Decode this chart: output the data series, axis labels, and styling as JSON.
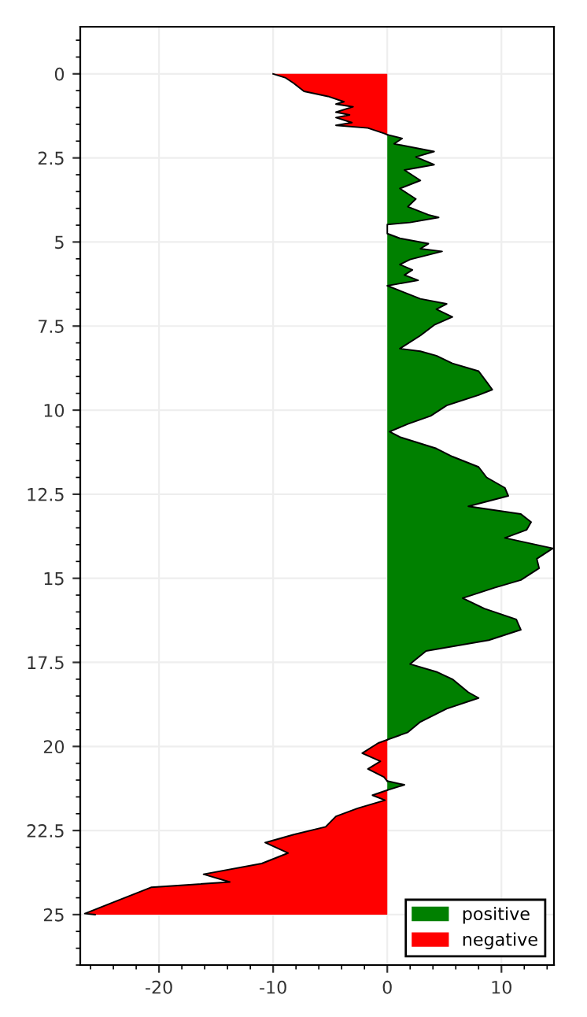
{
  "chart_data": {
    "type": "area",
    "orientation": "horizontal",
    "xlim": [
      -26.9,
      14.6
    ],
    "ylim": [
      26.5,
      -1.4
    ],
    "xticks": [
      -20,
      -10,
      0,
      10
    ],
    "yticks": [
      0,
      2.5,
      5,
      7.5,
      10,
      12.5,
      15,
      17.5,
      20,
      22.5,
      25
    ],
    "grid": true,
    "legend": "bottom right",
    "series": [
      {
        "name": "positive",
        "color": "#008000",
        "x": [
          1.81,
          1.92,
          2.08,
          2.31,
          2.47,
          2.7,
          2.86,
          3.17,
          3.41,
          3.72,
          3.95,
          4.19,
          4.27,
          4.42,
          4.48,
          4.75,
          4.89,
          5.05,
          5.2,
          5.28,
          5.52,
          5.67,
          5.83,
          5.98,
          6.14,
          6.3,
          6.69,
          6.84,
          7.0,
          7.23,
          7.47,
          7.78,
          8.17,
          8.25,
          8.38,
          8.61,
          8.84,
          9.16,
          9.39,
          9.55,
          9.86,
          10.17,
          10.41,
          10.64,
          10.8,
          11.14,
          11.38,
          11.69,
          12.0,
          12.31,
          12.55,
          12.86,
          13.09,
          13.33,
          13.56,
          13.8,
          14.11,
          14.42,
          14.7,
          15.05,
          15.28,
          15.59,
          15.9,
          16.22,
          16.53,
          16.84,
          17.16,
          17.55,
          17.78,
          18.0,
          18.39,
          18.56,
          18.88,
          19.27,
          19.58,
          19.8,
          20.5,
          21.03,
          21.14,
          21.3
        ],
        "values": [
          0,
          1.3,
          0.6,
          4.1,
          2.5,
          4.1,
          1.5,
          2.9,
          1.1,
          2.5,
          1.8,
          3.6,
          4.5,
          2.0,
          0,
          0,
          1.1,
          3.6,
          2.9,
          4.8,
          2.0,
          1.1,
          2.2,
          1.5,
          2.7,
          0,
          2.9,
          5.2,
          4.3,
          5.7,
          4.1,
          2.9,
          1.1,
          2.9,
          4.3,
          5.7,
          8.0,
          8.7,
          9.2,
          8.0,
          5.2,
          3.8,
          1.8,
          0.2,
          1.1,
          4.3,
          5.7,
          8.0,
          8.7,
          10.3,
          10.6,
          7.1,
          11.7,
          12.6,
          12.2,
          10.3,
          14.5,
          13.1,
          13.3,
          11.7,
          9.4,
          6.6,
          8.5,
          11.3,
          11.7,
          8.9,
          3.4,
          2.0,
          4.3,
          5.7,
          7.1,
          8.0,
          5.2,
          2.9,
          1.8,
          0,
          null,
          0,
          1.5,
          0
        ]
      },
      {
        "name": "negative",
        "color": "#ff0000",
        "x": [
          0,
          0.12,
          0.28,
          0.52,
          0.67,
          0.83,
          0.9,
          0.98,
          1.14,
          1.22,
          1.3,
          1.45,
          1.53,
          1.61,
          1.77,
          1.81,
          13.0,
          19.8,
          19.9,
          20.2,
          20.44,
          20.67,
          20.91,
          21.03,
          21.2,
          21.3,
          21.45,
          21.6,
          21.84,
          22.08,
          22.39,
          22.62,
          22.86,
          23.17,
          23.48,
          23.8,
          24.03,
          24.19,
          24.66,
          24.97,
          25.0
        ],
        "values": [
          -10.0,
          -8.9,
          -8.2,
          -7.3,
          -5.2,
          -3.8,
          -4.5,
          -3.0,
          -4.5,
          -3.3,
          -4.5,
          -3.1,
          -4.5,
          -1.7,
          -0.3,
          0,
          null,
          0,
          -0.8,
          -2.2,
          -0.6,
          -1.7,
          -0.3,
          0,
          null,
          0,
          -1.3,
          -0.2,
          -2.6,
          -4.5,
          -5.4,
          -8.2,
          -10.7,
          -8.7,
          -11.0,
          -16.1,
          -13.8,
          -20.7,
          -24.2,
          -26.5,
          -25.6
        ]
      }
    ]
  }
}
